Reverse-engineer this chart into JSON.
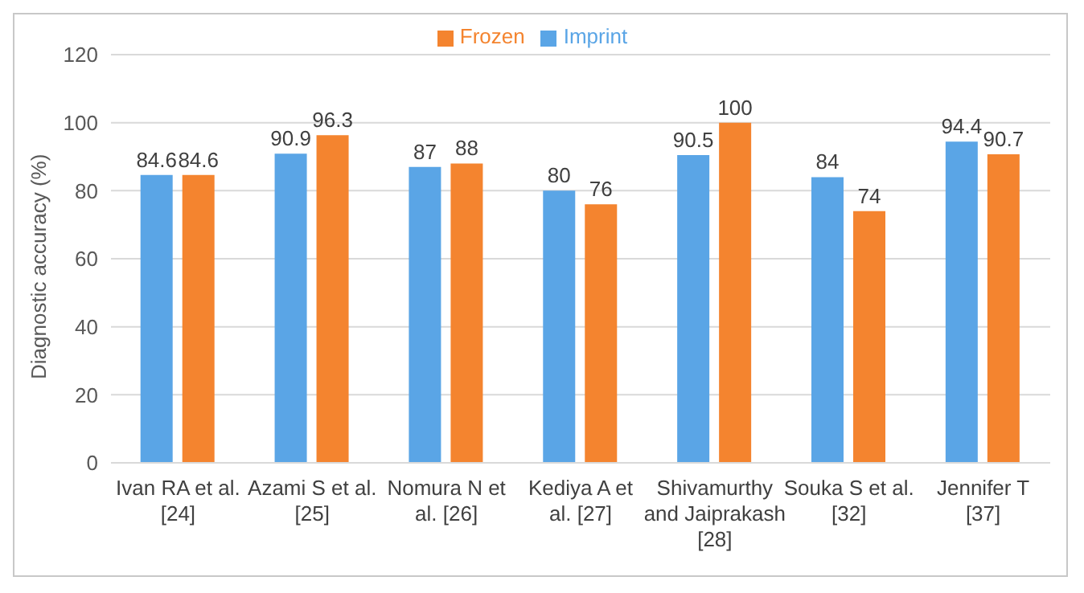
{
  "chart_data": {
    "type": "bar",
    "ylabel": "Diagnostic accuracy (%)",
    "categories": [
      "Ivan RA et al. [24]",
      "Azami S et al. [25]",
      "Nomura N et al. [26]",
      "Kediya A et al. [27]",
      "Shivamurthy and Jaiprakash [28]",
      "Souka S et al. [32]",
      "Jennifer T [37]"
    ],
    "series": [
      {
        "name": "Imprint",
        "color": "#5aa5e6",
        "values": [
          84.6,
          90.9,
          87,
          80,
          90.5,
          84,
          94.4
        ]
      },
      {
        "name": "Frozen",
        "color": "#f4842f",
        "values": [
          84.6,
          96.3,
          88,
          76,
          100,
          74,
          90.7
        ]
      }
    ],
    "ylim": [
      0,
      120
    ],
    "yticks": [
      0,
      20,
      40,
      60,
      80,
      100,
      120
    ],
    "grid": "y",
    "legend": "top",
    "data_labels": true
  }
}
